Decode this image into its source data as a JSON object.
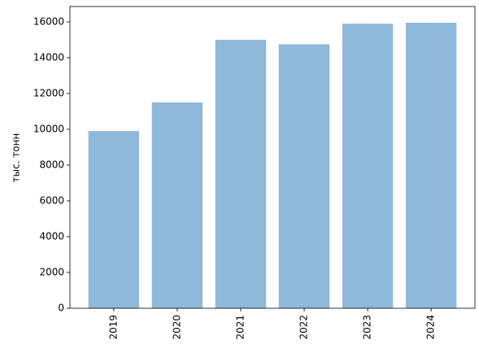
{
  "chart_data": {
    "type": "bar",
    "y_label": "тыс. тонн",
    "categories": [
      "2019",
      "2020",
      "2021",
      "2022",
      "2023",
      "2024"
    ],
    "values": [
      9900,
      11500,
      15000,
      14750,
      15900,
      15950
    ],
    "color": "#8fb9da",
    "ylim": [
      0,
      16860
    ],
    "yticks": [
      0,
      2000,
      4000,
      6000,
      8000,
      10000,
      12000,
      14000,
      16000
    ]
  }
}
